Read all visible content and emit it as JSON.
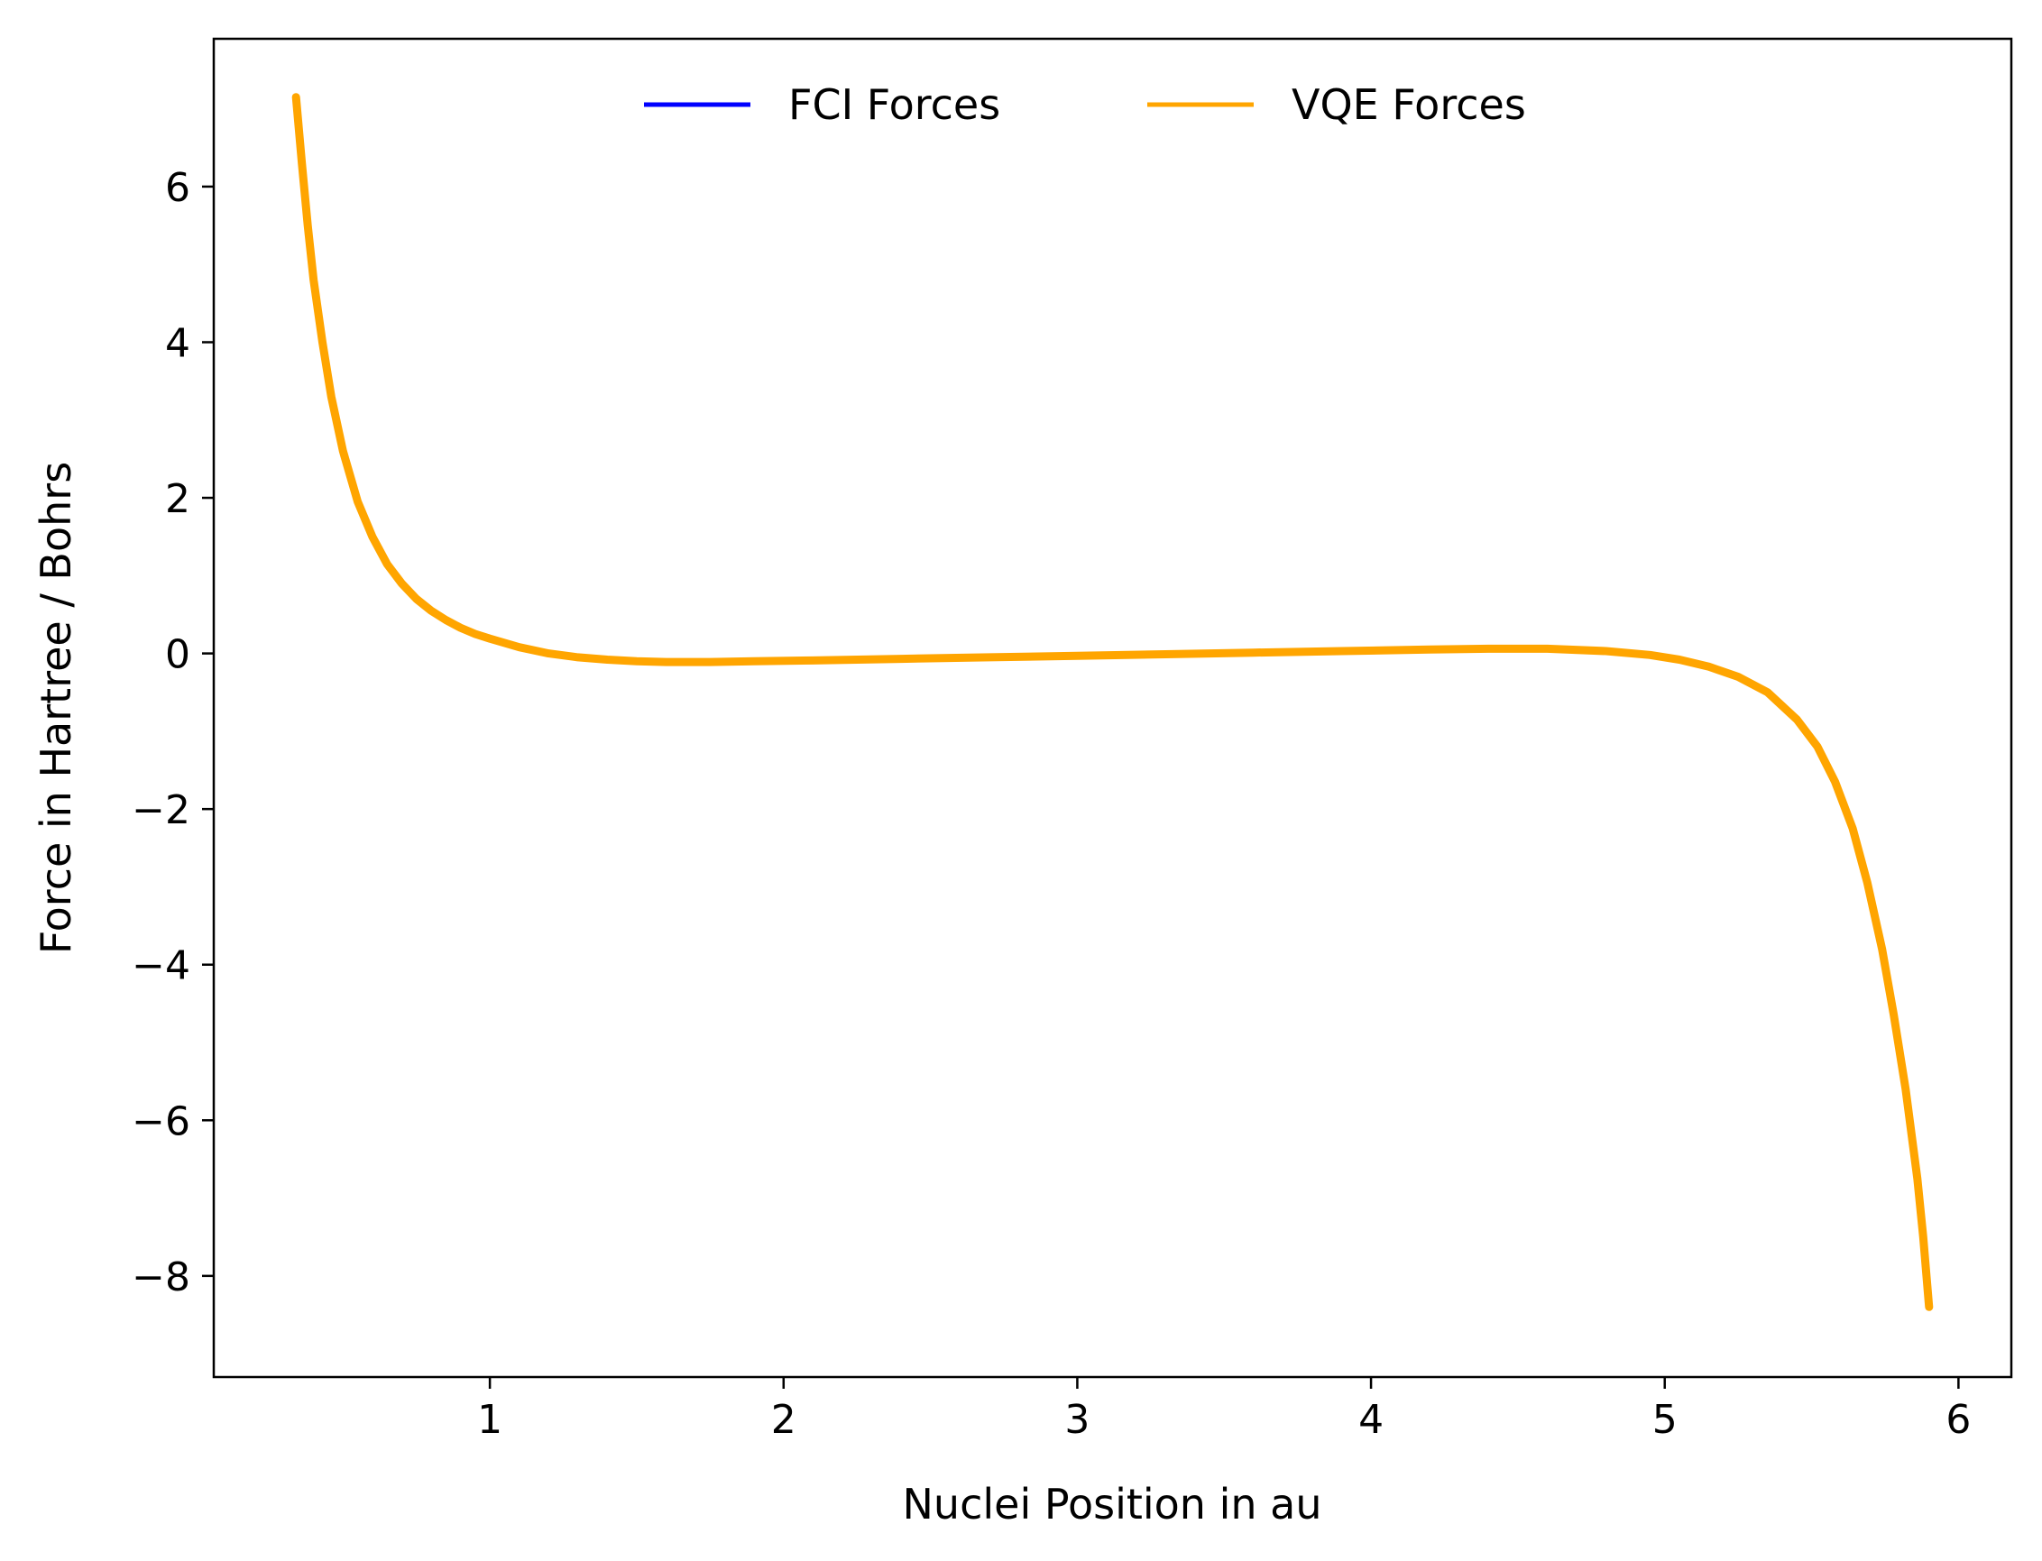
{
  "chart_data": {
    "type": "line",
    "xlabel": "Nuclei Position in au",
    "ylabel": "Force in Hartree / Bohrs",
    "xlim": [
      0.06,
      6.18
    ],
    "ylim": [
      -9.3,
      7.9
    ],
    "xticks": [
      1,
      2,
      3,
      4,
      5,
      6
    ],
    "yticks": [
      -8,
      -6,
      -4,
      -2,
      0,
      2,
      4,
      6
    ],
    "xtick_labels": [
      "1",
      "2",
      "3",
      "4",
      "5",
      "6"
    ],
    "ytick_labels": [
      "−8",
      "−6",
      "−4",
      "−2",
      "0",
      "2",
      "4",
      "6"
    ],
    "grid": false,
    "legend_position": "top-center",
    "series": [
      {
        "name": "FCI Forces",
        "color": "#0000ff",
        "x": [
          0.34,
          0.36,
          0.38,
          0.4,
          0.43,
          0.46,
          0.5,
          0.55,
          0.6,
          0.65,
          0.7,
          0.75,
          0.8,
          0.85,
          0.9,
          0.95,
          1.0,
          1.1,
          1.2,
          1.3,
          1.4,
          1.5,
          1.6,
          1.75,
          1.9,
          2.1,
          2.4,
          2.7,
          3.0,
          3.3,
          3.6,
          3.9,
          4.2,
          4.4,
          4.6,
          4.8,
          4.95,
          5.05,
          5.15,
          5.25,
          5.35,
          5.45,
          5.52,
          5.58,
          5.64,
          5.69,
          5.74,
          5.78,
          5.82,
          5.86,
          5.88,
          5.9
        ],
        "y": [
          7.15,
          6.3,
          5.5,
          4.8,
          4.0,
          3.3,
          2.6,
          1.95,
          1.5,
          1.15,
          0.9,
          0.7,
          0.55,
          0.43,
          0.33,
          0.25,
          0.19,
          0.08,
          0.0,
          -0.05,
          -0.08,
          -0.1,
          -0.11,
          -0.11,
          -0.1,
          -0.09,
          -0.07,
          -0.05,
          -0.03,
          -0.01,
          0.01,
          0.03,
          0.05,
          0.06,
          0.06,
          0.03,
          -0.02,
          -0.08,
          -0.17,
          -0.3,
          -0.5,
          -0.85,
          -1.2,
          -1.65,
          -2.25,
          -2.95,
          -3.8,
          -4.65,
          -5.6,
          -6.75,
          -7.5,
          -8.4
        ]
      },
      {
        "name": "VQE Forces",
        "color": "#ffa500",
        "x": [
          0.34,
          0.36,
          0.38,
          0.4,
          0.43,
          0.46,
          0.5,
          0.55,
          0.6,
          0.65,
          0.7,
          0.75,
          0.8,
          0.85,
          0.9,
          0.95,
          1.0,
          1.1,
          1.2,
          1.3,
          1.4,
          1.5,
          1.6,
          1.75,
          1.9,
          2.1,
          2.4,
          2.7,
          3.0,
          3.3,
          3.6,
          3.9,
          4.2,
          4.4,
          4.6,
          4.8,
          4.95,
          5.05,
          5.15,
          5.25,
          5.35,
          5.45,
          5.52,
          5.58,
          5.64,
          5.69,
          5.74,
          5.78,
          5.82,
          5.86,
          5.88,
          5.9
        ],
        "y": [
          7.15,
          6.3,
          5.5,
          4.8,
          4.0,
          3.3,
          2.6,
          1.95,
          1.5,
          1.15,
          0.9,
          0.7,
          0.55,
          0.43,
          0.33,
          0.25,
          0.19,
          0.08,
          0.0,
          -0.05,
          -0.08,
          -0.1,
          -0.11,
          -0.11,
          -0.1,
          -0.09,
          -0.07,
          -0.05,
          -0.03,
          -0.01,
          0.01,
          0.03,
          0.05,
          0.06,
          0.06,
          0.03,
          -0.02,
          -0.08,
          -0.17,
          -0.3,
          -0.5,
          -0.85,
          -1.2,
          -1.65,
          -2.25,
          -2.95,
          -3.8,
          -4.65,
          -5.6,
          -6.75,
          -7.5,
          -8.4
        ]
      }
    ]
  }
}
